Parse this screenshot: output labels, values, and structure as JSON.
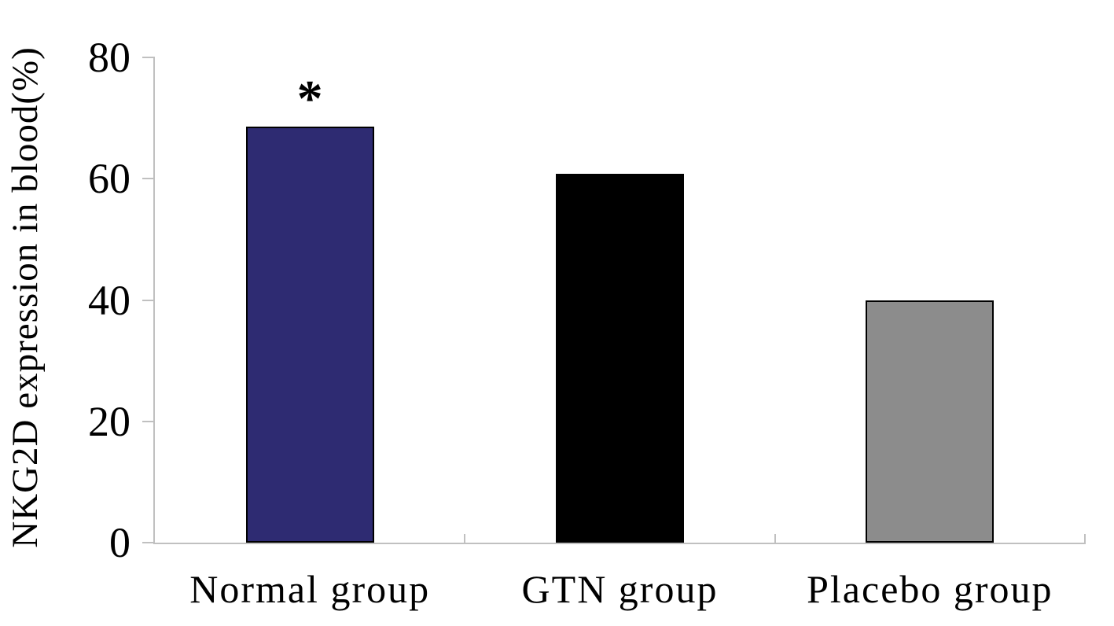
{
  "chart_data": {
    "type": "bar",
    "ylabel": "NKG2D expression in blood(%)",
    "categories": [
      "Normal group",
      "GTN group",
      "Placebo group"
    ],
    "values": [
      68.6,
      60.8,
      40
    ],
    "bar_colors": [
      "#2e2b72",
      "#000000",
      "#8c8c8c"
    ],
    "bar_border_color": "#000000",
    "ylim": [
      0,
      80
    ],
    "yticks": [
      0,
      20,
      40,
      60,
      80
    ],
    "grid": false,
    "legend": "none",
    "annotations": [
      {
        "category_index": 0,
        "text": "*"
      }
    ],
    "axis_color": "#c0c0c0",
    "text_color": "#000000"
  }
}
